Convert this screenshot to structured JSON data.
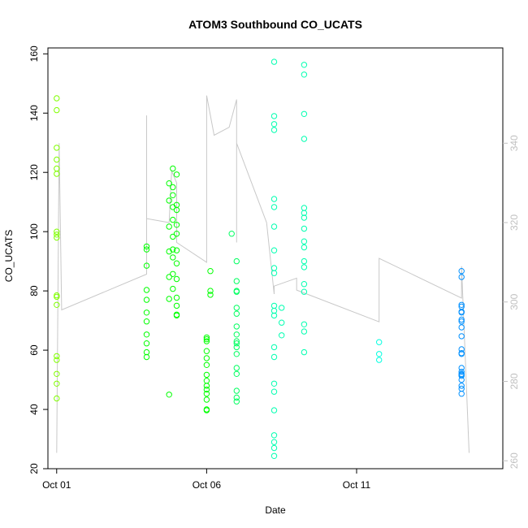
{
  "chart_data": {
    "type": "scatter",
    "title": "ATOM3 Southbound CO_UCATS",
    "xlabel": "Date",
    "ylabel": "CO_UCATS",
    "x_unit": "date",
    "xlim": [
      "2017-10-00 17:00",
      "2017-10-15 21:00"
    ],
    "ylim": [
      20,
      162
    ],
    "y2lim": [
      258,
      364
    ],
    "x_ticks": [
      {
        "at": "2017-10-01 00:00",
        "label": "Oct 01"
      },
      {
        "at": "2017-10-06 00:00",
        "label": "Oct 06"
      },
      {
        "at": "2017-10-11 00:00",
        "label": "Oct 11"
      }
    ],
    "y_ticks": [
      20,
      40,
      60,
      80,
      100,
      120,
      140,
      160
    ],
    "y2_ticks": [
      260,
      280,
      300,
      320,
      340
    ],
    "grid": false,
    "legend": "none",
    "colors": {
      "background": "#ffffff",
      "axis": "#000000",
      "secondary_axis": "#c0c0c0",
      "altitude_line": "#c8c8c8",
      "lime": "#80ff00",
      "green": "#00ff00",
      "spring": "#00ff60",
      "aqua": "#00ffb0",
      "cyan": "#00ffe0",
      "blue": "#0090ff"
    },
    "series": [
      {
        "type": "scatter",
        "color_key": "lime",
        "points": [
          [
            "2017-10-01 00:00",
            145.0
          ],
          [
            "2017-10-01 00:00",
            141.0
          ],
          [
            "2017-10-01 00:00",
            128.3
          ],
          [
            "2017-10-01 00:00",
            124.3
          ],
          [
            "2017-10-01 00:00",
            121.3
          ],
          [
            "2017-10-01 00:00",
            119.5
          ],
          [
            "2017-10-01 00:00",
            100.0
          ],
          [
            "2017-10-01 00:00",
            99.0
          ],
          [
            "2017-10-01 00:00",
            98.0
          ],
          [
            "2017-10-01 00:00",
            78.5
          ],
          [
            "2017-10-01 00:00",
            78.0
          ],
          [
            "2017-10-01 00:00",
            75.3
          ],
          [
            "2017-10-01 00:00",
            58.0
          ],
          [
            "2017-10-01 00:00",
            56.7
          ],
          [
            "2017-10-01 00:00",
            52.0
          ],
          [
            "2017-10-01 00:00",
            48.7
          ],
          [
            "2017-10-01 00:00",
            43.7
          ]
        ]
      },
      {
        "type": "scatter",
        "color_key": "green",
        "points": [
          [
            "2017-10-04 00:00",
            95.0
          ],
          [
            "2017-10-04 00:00",
            94.0
          ],
          [
            "2017-10-04 00:00",
            88.5
          ],
          [
            "2017-10-04 00:00",
            80.3
          ],
          [
            "2017-10-04 00:00",
            77.0
          ],
          [
            "2017-10-04 00:00",
            72.7
          ],
          [
            "2017-10-04 00:00",
            69.7
          ],
          [
            "2017-10-04 00:00",
            65.3
          ],
          [
            "2017-10-04 00:00",
            62.3
          ],
          [
            "2017-10-04 00:00",
            59.3
          ],
          [
            "2017-10-04 00:00",
            57.7
          ],
          [
            "2017-10-04 18:00",
            45.0
          ],
          [
            "2017-10-04 18:00",
            84.7
          ],
          [
            "2017-10-04 18:00",
            77.3
          ],
          [
            "2017-10-04 18:00",
            93.3
          ],
          [
            "2017-10-04 18:00",
            101.7
          ],
          [
            "2017-10-04 18:00",
            110.5
          ],
          [
            "2017-10-04 18:00",
            116.3
          ],
          [
            "2017-10-04 21:00",
            121.3
          ],
          [
            "2017-10-04 21:00",
            115.0
          ],
          [
            "2017-10-04 21:00",
            112.3
          ],
          [
            "2017-10-04 21:00",
            108.3
          ],
          [
            "2017-10-04 21:00",
            104.0
          ],
          [
            "2017-10-04 21:00",
            98.3
          ],
          [
            "2017-10-04 21:00",
            94.0
          ],
          [
            "2017-10-04 21:00",
            91.3
          ],
          [
            "2017-10-04 21:00",
            85.7
          ],
          [
            "2017-10-04 21:00",
            80.7
          ],
          [
            "2017-10-05 00:00",
            119.3
          ],
          [
            "2017-10-05 00:00",
            109.0
          ],
          [
            "2017-10-05 00:00",
            107.3
          ],
          [
            "2017-10-05 00:00",
            102.3
          ],
          [
            "2017-10-05 00:00",
            99.3
          ],
          [
            "2017-10-05 00:00",
            93.7
          ],
          [
            "2017-10-05 00:00",
            89.3
          ],
          [
            "2017-10-05 00:00",
            84.0
          ],
          [
            "2017-10-05 00:00",
            77.7
          ],
          [
            "2017-10-05 00:00",
            75.0
          ],
          [
            "2017-10-05 00:00",
            72.0
          ],
          [
            "2017-10-05 00:00",
            71.7
          ],
          [
            "2017-10-06 00:00",
            64.3
          ],
          [
            "2017-10-06 00:00",
            63.7
          ],
          [
            "2017-10-06 00:00",
            63.0
          ],
          [
            "2017-10-06 00:00",
            59.7
          ],
          [
            "2017-10-06 00:00",
            57.3
          ],
          [
            "2017-10-06 00:00",
            55.0
          ],
          [
            "2017-10-06 00:00",
            51.7
          ],
          [
            "2017-10-06 00:00",
            49.7
          ],
          [
            "2017-10-06 00:00",
            48.0
          ],
          [
            "2017-10-06 00:00",
            46.7
          ],
          [
            "2017-10-06 00:00",
            45.3
          ],
          [
            "2017-10-06 00:00",
            43.3
          ],
          [
            "2017-10-06 00:00",
            40.0
          ],
          [
            "2017-10-06 00:00",
            39.7
          ],
          [
            "2017-10-06 03:00",
            86.7
          ],
          [
            "2017-10-06 03:00",
            80.0
          ],
          [
            "2017-10-06 03:00",
            78.7
          ]
        ]
      },
      {
        "type": "scatter",
        "color_key": "spring",
        "points": [
          [
            "2017-10-06 20:00",
            99.3
          ],
          [
            "2017-10-07 00:00",
            90.0
          ],
          [
            "2017-10-07 00:00",
            83.3
          ],
          [
            "2017-10-07 00:00",
            80.0
          ],
          [
            "2017-10-07 00:00",
            79.7
          ],
          [
            "2017-10-07 00:00",
            74.3
          ],
          [
            "2017-10-07 00:00",
            72.3
          ],
          [
            "2017-10-07 00:00",
            68.0
          ],
          [
            "2017-10-07 00:00",
            65.3
          ],
          [
            "2017-10-07 00:00",
            63.0
          ],
          [
            "2017-10-07 00:00",
            62.3
          ],
          [
            "2017-10-07 00:00",
            61.0
          ],
          [
            "2017-10-07 00:00",
            58.7
          ],
          [
            "2017-10-07 00:00",
            54.0
          ],
          [
            "2017-10-07 00:00",
            52.0
          ],
          [
            "2017-10-07 00:00",
            46.3
          ],
          [
            "2017-10-07 00:00",
            44.0
          ],
          [
            "2017-10-07 00:00",
            42.7
          ]
        ]
      },
      {
        "type": "scatter",
        "color_key": "aqua",
        "points": [
          [
            "2017-10-08 06:00",
            157.3
          ],
          [
            "2017-10-08 06:00",
            139.0
          ],
          [
            "2017-10-08 06:00",
            136.3
          ],
          [
            "2017-10-08 06:00",
            134.3
          ],
          [
            "2017-10-08 06:00",
            111.0
          ],
          [
            "2017-10-08 06:00",
            108.3
          ],
          [
            "2017-10-08 06:00",
            101.7
          ],
          [
            "2017-10-08 06:00",
            93.7
          ],
          [
            "2017-10-08 06:00",
            87.7
          ],
          [
            "2017-10-08 06:00",
            86.0
          ],
          [
            "2017-10-08 06:00",
            75.0
          ],
          [
            "2017-10-08 06:00",
            73.3
          ],
          [
            "2017-10-08 06:00",
            71.7
          ],
          [
            "2017-10-08 06:00",
            61.0
          ],
          [
            "2017-10-08 06:00",
            57.7
          ],
          [
            "2017-10-08 06:00",
            48.7
          ],
          [
            "2017-10-08 06:00",
            46.0
          ],
          [
            "2017-10-08 06:00",
            39.7
          ],
          [
            "2017-10-08 06:00",
            31.3
          ],
          [
            "2017-10-08 06:00",
            29.0
          ],
          [
            "2017-10-08 06:00",
            27.0
          ],
          [
            "2017-10-08 06:00",
            24.3
          ],
          [
            "2017-10-08 12:00",
            74.3
          ],
          [
            "2017-10-08 12:00",
            69.3
          ],
          [
            "2017-10-08 12:00",
            65.0
          ],
          [
            "2017-10-09 06:00",
            156.3
          ],
          [
            "2017-10-09 06:00",
            153.0
          ],
          [
            "2017-10-09 06:00",
            139.7
          ],
          [
            "2017-10-09 06:00",
            131.3
          ],
          [
            "2017-10-09 06:00",
            108.0
          ],
          [
            "2017-10-09 06:00",
            106.3
          ],
          [
            "2017-10-09 06:00",
            104.7
          ],
          [
            "2017-10-09 06:00",
            101.0
          ],
          [
            "2017-10-09 06:00",
            96.7
          ],
          [
            "2017-10-09 06:00",
            94.7
          ],
          [
            "2017-10-09 06:00",
            90.0
          ],
          [
            "2017-10-09 06:00",
            88.0
          ],
          [
            "2017-10-09 06:00",
            82.3
          ],
          [
            "2017-10-09 06:00",
            79.7
          ],
          [
            "2017-10-09 06:00",
            68.7
          ],
          [
            "2017-10-09 06:00",
            66.3
          ],
          [
            "2017-10-09 06:00",
            59.3
          ]
        ]
      },
      {
        "type": "scatter",
        "color_key": "cyan",
        "points": [
          [
            "2017-10-11 18:00",
            62.7
          ],
          [
            "2017-10-11 18:00",
            58.7
          ],
          [
            "2017-10-11 18:00",
            56.7
          ]
        ]
      },
      {
        "type": "scatter",
        "color_key": "blue",
        "points": [
          [
            "2017-10-14 12:00",
            86.7
          ],
          [
            "2017-10-14 12:00",
            84.7
          ],
          [
            "2017-10-14 12:00",
            75.3
          ],
          [
            "2017-10-14 12:00",
            74.7
          ],
          [
            "2017-10-14 12:00",
            73.0
          ],
          [
            "2017-10-14 12:00",
            72.7
          ],
          [
            "2017-10-14 12:00",
            70.3
          ],
          [
            "2017-10-14 12:00",
            69.7
          ],
          [
            "2017-10-14 12:00",
            67.7
          ],
          [
            "2017-10-14 12:00",
            64.7
          ],
          [
            "2017-10-14 12:00",
            60.3
          ],
          [
            "2017-10-14 12:00",
            59.0
          ],
          [
            "2017-10-14 12:00",
            58.7
          ],
          [
            "2017-10-14 12:00",
            54.0
          ],
          [
            "2017-10-14 12:00",
            52.7
          ],
          [
            "2017-10-14 12:00",
            52.0
          ],
          [
            "2017-10-14 12:00",
            51.7
          ],
          [
            "2017-10-14 12:00",
            51.3
          ],
          [
            "2017-10-14 12:00",
            50.0
          ],
          [
            "2017-10-14 12:00",
            48.0
          ],
          [
            "2017-10-14 12:00",
            47.0
          ],
          [
            "2017-10-14 12:00",
            45.3
          ]
        ]
      },
      {
        "type": "line",
        "axis": "right",
        "color_key": "altitude_line",
        "points": [
          [
            "2017-10-01 00:00",
            262
          ],
          [
            "2017-10-01 02:00",
            340
          ],
          [
            "2017-10-01 04:00",
            298
          ],
          [
            "2017-10-04 00:00",
            307
          ],
          [
            "2017-10-04 00:00",
            347
          ],
          [
            "2017-10-04 00:00",
            325
          ],
          [
            "2017-10-04 00:00",
            321
          ],
          [
            "2017-10-04 18:00",
            320
          ],
          [
            "2017-10-04 20:00",
            333
          ],
          [
            "2017-10-05 00:00",
            330
          ],
          [
            "2017-10-05 00:00",
            315
          ],
          [
            "2017-10-06 00:00",
            310
          ],
          [
            "2017-10-06 00:00",
            352
          ],
          [
            "2017-10-06 06:00",
            342
          ],
          [
            "2017-10-06 18:00",
            344
          ],
          [
            "2017-10-07 00:00",
            351
          ],
          [
            "2017-10-07 00:00",
            315
          ],
          [
            "2017-10-07 00:00",
            340
          ],
          [
            "2017-10-08 00:00",
            320
          ],
          [
            "2017-10-08 06:00",
            302
          ],
          [
            "2017-10-08 06:00",
            304
          ],
          [
            "2017-10-09 00:00",
            306
          ],
          [
            "2017-10-09 00:00",
            303
          ],
          [
            "2017-10-11 18:00",
            295
          ],
          [
            "2017-10-11 18:00",
            311
          ],
          [
            "2017-10-14 12:00",
            301
          ],
          [
            "2017-10-14 12:00",
            309
          ],
          [
            "2017-10-14 18:00",
            262
          ]
        ]
      }
    ]
  }
}
